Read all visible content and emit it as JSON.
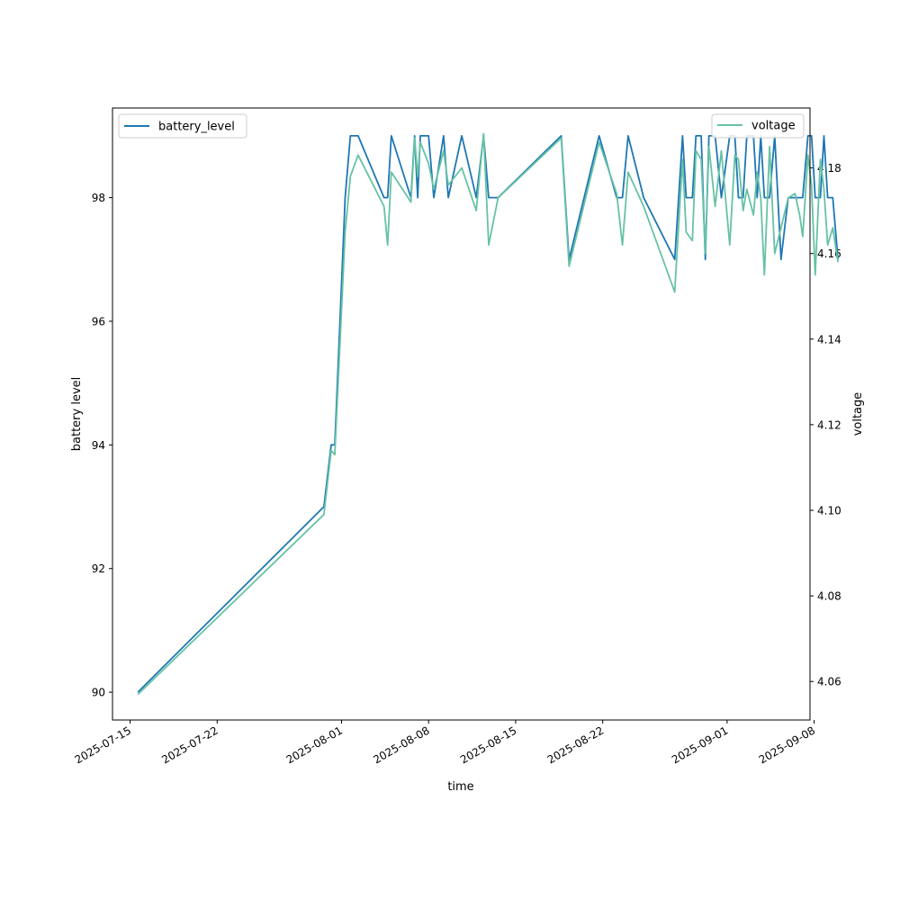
{
  "chart_data": {
    "type": "line",
    "xlabel": "time",
    "ylabel_left": "battery level",
    "ylabel_right": "voltage",
    "x_ticks": [
      "2025-07-15",
      "2025-07-22",
      "2025-08-01",
      "2025-08-08",
      "2025-08-15",
      "2025-08-22",
      "2025-09-01",
      "2025-09-08"
    ],
    "y_left_ticks": [
      90,
      92,
      94,
      96,
      98
    ],
    "y_right_ticks": [
      4.06,
      4.08,
      4.1,
      4.12,
      4.14,
      4.16,
      4.18
    ],
    "x_range": [
      "2025-07-13T14:00",
      "2025-09-07T16:00"
    ],
    "y_left_range": [
      89.55,
      99.45
    ],
    "y_right_range": [
      4.051,
      4.194
    ],
    "grid": false,
    "series": [
      {
        "name": "battery_level",
        "axis": "left",
        "color": "#1f77b4",
        "legend": "top-left",
        "points": [
          [
            "2025-07-15T15:00",
            90.0
          ],
          [
            "2025-07-30T14:00",
            93.0
          ],
          [
            "2025-07-31T04:00",
            94.0
          ],
          [
            "2025-07-31T11:00",
            94.0
          ],
          [
            "2025-08-01T07:00",
            98.0
          ],
          [
            "2025-08-01T17:00",
            99.0
          ],
          [
            "2025-08-02T08:00",
            99.0
          ],
          [
            "2025-08-04T10:00",
            98.0
          ],
          [
            "2025-08-04T17:00",
            98.0
          ],
          [
            "2025-08-05T00:00",
            99.0
          ],
          [
            "2025-08-06T14:00",
            98.0
          ],
          [
            "2025-08-06T21:00",
            99.0
          ],
          [
            "2025-08-07T03:00",
            98.0
          ],
          [
            "2025-08-07T08:00",
            99.0
          ],
          [
            "2025-08-08T00:00",
            99.0
          ],
          [
            "2025-08-08T10:00",
            98.0
          ],
          [
            "2025-08-09T05:00",
            99.0
          ],
          [
            "2025-08-09T14:00",
            98.0
          ],
          [
            "2025-08-10T16:00",
            99.0
          ],
          [
            "2025-08-11T20:00",
            98.0
          ],
          [
            "2025-08-12T10:00",
            99.0
          ],
          [
            "2025-08-12T20:00",
            98.0
          ],
          [
            "2025-08-13T14:00",
            98.0
          ],
          [
            "2025-08-18T16:00",
            99.0
          ],
          [
            "2025-08-19T07:00",
            97.0
          ],
          [
            "2025-08-21T17:00",
            99.0
          ],
          [
            "2025-08-23T03:00",
            98.0
          ],
          [
            "2025-08-23T14:00",
            98.0
          ],
          [
            "2025-08-24T01:00",
            99.0
          ],
          [
            "2025-08-25T07:00",
            98.0
          ],
          [
            "2025-08-27T19:00",
            97.0
          ],
          [
            "2025-08-28T10:00",
            99.0
          ],
          [
            "2025-08-28T17:00",
            98.0
          ],
          [
            "2025-08-29T05:00",
            98.0
          ],
          [
            "2025-08-29T12:00",
            99.0
          ],
          [
            "2025-08-29T22:00",
            99.0
          ],
          [
            "2025-08-30T06:00",
            97.0
          ],
          [
            "2025-08-30T13:00",
            99.0
          ],
          [
            "2025-08-31T01:00",
            99.0
          ],
          [
            "2025-08-31T13:00",
            98.0
          ],
          [
            "2025-09-01T05:00",
            99.0
          ],
          [
            "2025-09-01T15:00",
            99.0
          ],
          [
            "2025-09-01T22:00",
            98.0
          ],
          [
            "2025-09-02T07:00",
            98.0
          ],
          [
            "2025-09-02T14:00",
            99.0
          ],
          [
            "2025-09-03T03:00",
            99.0
          ],
          [
            "2025-09-03T10:00",
            98.0
          ],
          [
            "2025-09-03T17:00",
            99.0
          ],
          [
            "2025-09-04T00:00",
            98.0
          ],
          [
            "2025-09-04T10:00",
            98.0
          ],
          [
            "2025-09-04T20:00",
            99.0
          ],
          [
            "2025-09-05T08:00",
            97.0
          ],
          [
            "2025-09-05T22:00",
            98.0
          ],
          [
            "2025-09-06T11:00",
            98.0
          ],
          [
            "2025-09-06T20:00",
            98.0
          ],
          [
            "2025-09-07T02:00",
            98.0
          ],
          [
            "2025-09-07T12:00",
            99.0
          ],
          [
            "2025-09-07T19:00",
            99.0
          ],
          [
            "2025-09-08T02:00",
            98.0
          ],
          [
            "2025-09-08T12:00",
            98.0
          ],
          [
            "2025-09-08T19:00",
            99.0
          ],
          [
            "2025-09-09T02:00",
            98.0
          ],
          [
            "2025-09-09T12:00",
            98.0
          ],
          [
            "2025-09-09T22:00",
            97.0
          ]
        ]
      },
      {
        "name": "voltage",
        "axis": "right",
        "color": "#66c2a5",
        "legend": "top-right",
        "points": [
          [
            "2025-07-15T15:00",
            4.057
          ],
          [
            "2025-07-30T14:00",
            4.099
          ],
          [
            "2025-07-31T04:00",
            4.114
          ],
          [
            "2025-07-31T11:00",
            4.113
          ],
          [
            "2025-08-01T07:00",
            4.165
          ],
          [
            "2025-08-01T17:00",
            4.178
          ],
          [
            "2025-08-02T08:00",
            4.183
          ],
          [
            "2025-08-04T10:00",
            4.171
          ],
          [
            "2025-08-04T17:00",
            4.162
          ],
          [
            "2025-08-05T00:00",
            4.179
          ],
          [
            "2025-08-06T14:00",
            4.172
          ],
          [
            "2025-08-06T21:00",
            4.187
          ],
          [
            "2025-08-07T03:00",
            4.178
          ],
          [
            "2025-08-07T08:00",
            4.186
          ],
          [
            "2025-08-08T00:00",
            4.181
          ],
          [
            "2025-08-08T10:00",
            4.175
          ],
          [
            "2025-08-09T05:00",
            4.184
          ],
          [
            "2025-08-09T14:00",
            4.176
          ],
          [
            "2025-08-10T16:00",
            4.18
          ],
          [
            "2025-08-11T20:00",
            4.17
          ],
          [
            "2025-08-12T10:00",
            4.188
          ],
          [
            "2025-08-12T20:00",
            4.162
          ],
          [
            "2025-08-13T14:00",
            4.173
          ],
          [
            "2025-08-18T16:00",
            4.187
          ],
          [
            "2025-08-19T07:00",
            4.157
          ],
          [
            "2025-08-21T17:00",
            4.186
          ],
          [
            "2025-08-23T03:00",
            4.174
          ],
          [
            "2025-08-23T14:00",
            4.162
          ],
          [
            "2025-08-24T01:00",
            4.179
          ],
          [
            "2025-08-25T07:00",
            4.171
          ],
          [
            "2025-08-27T19:00",
            4.151
          ],
          [
            "2025-08-28T10:00",
            4.182
          ],
          [
            "2025-08-28T17:00",
            4.165
          ],
          [
            "2025-08-29T05:00",
            4.163
          ],
          [
            "2025-08-29T12:00",
            4.184
          ],
          [
            "2025-08-29T22:00",
            4.182
          ],
          [
            "2025-08-30T06:00",
            4.16
          ],
          [
            "2025-08-30T13:00",
            4.185
          ],
          [
            "2025-08-31T01:00",
            4.171
          ],
          [
            "2025-08-31T13:00",
            4.184
          ],
          [
            "2025-09-01T05:00",
            4.162
          ],
          [
            "2025-09-01T15:00",
            4.183
          ],
          [
            "2025-09-01T22:00",
            4.182
          ],
          [
            "2025-09-02T07:00",
            4.17
          ],
          [
            "2025-09-02T14:00",
            4.175
          ],
          [
            "2025-09-03T03:00",
            4.169
          ],
          [
            "2025-09-03T10:00",
            4.179
          ],
          [
            "2025-09-03T17:00",
            4.173
          ],
          [
            "2025-09-04T00:00",
            4.155
          ],
          [
            "2025-09-04T10:00",
            4.185
          ],
          [
            "2025-09-04T20:00",
            4.16
          ],
          [
            "2025-09-05T08:00",
            4.166
          ],
          [
            "2025-09-05T22:00",
            4.173
          ],
          [
            "2025-09-06T11:00",
            4.174
          ],
          [
            "2025-09-06T20:00",
            4.169
          ],
          [
            "2025-09-07T02:00",
            4.164
          ],
          [
            "2025-09-07T12:00",
            4.183
          ],
          [
            "2025-09-07T19:00",
            4.176
          ],
          [
            "2025-09-08T02:00",
            4.155
          ],
          [
            "2025-09-08T12:00",
            4.182
          ],
          [
            "2025-09-08T19:00",
            4.175
          ],
          [
            "2025-09-09T02:00",
            4.162
          ],
          [
            "2025-09-09T12:00",
            4.166
          ],
          [
            "2025-09-09T22:00",
            4.158
          ]
        ]
      }
    ]
  }
}
